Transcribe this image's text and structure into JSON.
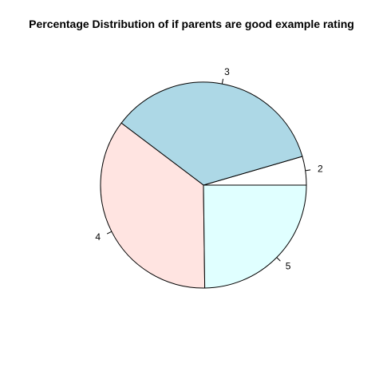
{
  "chart_data": {
    "type": "pie",
    "title": "Percentage Distribution of if parents are good example rating",
    "slices": [
      {
        "label": "2",
        "value": 4.5,
        "color": "#ffffff"
      },
      {
        "label": "3",
        "value": 35.2,
        "color": "#add8e6"
      },
      {
        "label": "4",
        "value": 35.5,
        "color": "#ffe4e1"
      },
      {
        "label": "5",
        "value": 24.8,
        "color": "#e0ffff"
      }
    ],
    "start_angle_deg": 0,
    "direction": "counterclockwise",
    "border_color": "#000000",
    "legend": "none"
  }
}
